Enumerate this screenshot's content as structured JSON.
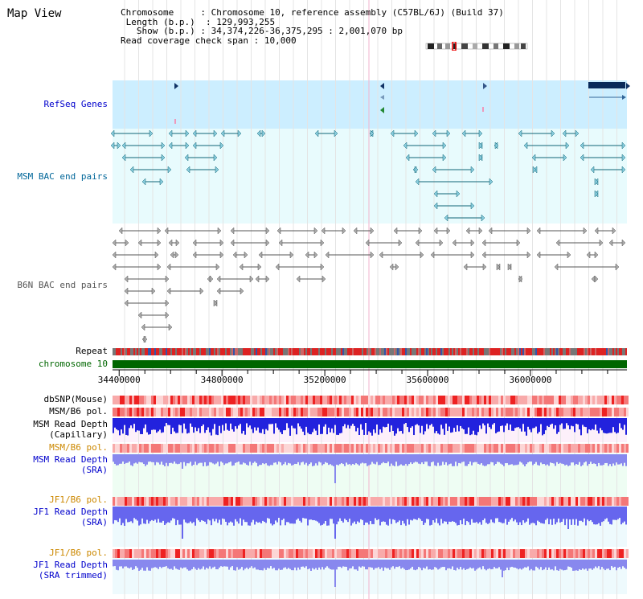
{
  "title": "Map View",
  "header": {
    "chromosome_key": "Chromosome",
    "chromosome_value": "Chromosome 10, reference assembly (C57BL/6J) (Build 37)",
    "length_key": "Length (b.p.)",
    "length_value": "129,993,255",
    "show_key": "Show (b.p.)",
    "show_value": "34,374,226-36,375,295 : 2,001,070 bp",
    "coverage_key": "Read coverage check span",
    "coverage_value": "10,000"
  },
  "tracks": {
    "refseq": {
      "label": "RefSeq Genes",
      "color": "#0000cc"
    },
    "msm_bac": {
      "label": "MSM BAC end pairs",
      "color": "#006699"
    },
    "b6n_bac": {
      "label": "B6N BAC end pairs",
      "color": "#555555"
    },
    "repeat": {
      "label": "Repeat"
    },
    "chromosome": {
      "label": "chromosome 10",
      "color": "#006600"
    },
    "dbsnp": {
      "label": "dbSNP(Mouse)"
    },
    "msm_b6_pol_1": {
      "label": "MSM/B6 pol."
    },
    "msm_read_cap_1": {
      "label": "MSM Read Depth"
    },
    "msm_read_cap_2": {
      "label": "(Capillary)"
    },
    "msm_b6_pol_2": {
      "label": "MSM/B6 pol.",
      "color": "#cc8800"
    },
    "msm_read_sra_1": {
      "label": "MSM Read Depth",
      "color": "#0000cc"
    },
    "msm_read_sra_2": {
      "label": "(SRA)",
      "color": "#0000cc"
    },
    "jf1_pol_1": {
      "label": "JF1/B6 pol.",
      "color": "#cc8800"
    },
    "jf1_read_1": {
      "label": "JF1 Read Depth",
      "color": "#0000cc"
    },
    "jf1_read_2": {
      "label": "(SRA)",
      "color": "#0000cc"
    },
    "jf1_pol_2": {
      "label": "JF1/B6 pol.",
      "color": "#cc8800"
    },
    "jf1_trim_1": {
      "label": "JF1 Read Depth",
      "color": "#0000cc"
    },
    "jf1_trim_2": {
      "label": "(SRA trimmed)",
      "color": "#0000cc"
    }
  },
  "axis": {
    "start": 34374226,
    "end": 36375295,
    "ticks": [
      "34400000",
      "34800000",
      "35200000",
      "35600000",
      "36000000"
    ]
  }
}
